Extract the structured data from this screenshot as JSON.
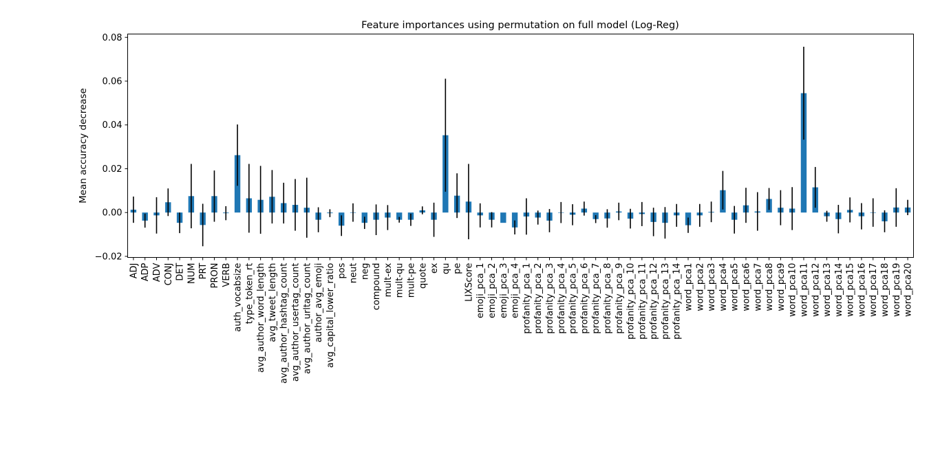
{
  "chart_data": {
    "type": "bar",
    "title": "Feature importances using permutation on full model (Log-Reg)",
    "xlabel": "",
    "ylabel": "Mean accuracy decrease",
    "ylim": [
      -0.0205,
      0.0815
    ],
    "yticks": [
      -0.02,
      0.0,
      0.02,
      0.04,
      0.06,
      0.08
    ],
    "ytick_labels": [
      "−0.02",
      "0.00",
      "0.02",
      "0.04",
      "0.06",
      "0.08"
    ],
    "grid": false,
    "legend": "none",
    "bar_color": "#1f77b4",
    "error_color": "#000000",
    "categories": [
      "ADJ",
      "ADP",
      "ADV",
      "CONJ",
      "DET",
      "NUM",
      "PRT",
      "PRON",
      "VERB",
      "auth_vocabsize",
      "type_token_rt",
      "avg_author_word_length",
      "avg_tweet_length",
      "avg_author_hashtag_count",
      "avg_author_usertag_count",
      "avg_author_urltag_count",
      "author_avg_emoji",
      "avg_capital_lower_ratio",
      "pos",
      "neut",
      "neg",
      "compound",
      "mult-ex",
      "mult-qu",
      "mult-pe",
      "quote",
      "ex",
      "qu",
      "pe",
      "LIXScore",
      "emoji_pca_1",
      "emoji_pca_2",
      "emoji_pca_3",
      "emoji_pca_4",
      "profanity_pca_1",
      "profanity_pca_2",
      "profanity_pca_3",
      "profanity_pca_4",
      "profanity_pca_5",
      "profanity_pca_6",
      "profanity_pca_7",
      "profanity_pca_8",
      "profanity_pca_9",
      "profanity_pca_10",
      "profanity_pca_11",
      "profanity_pca_12",
      "profanity_pca_13",
      "profanity_pca_14",
      "word_pca1",
      "word_pca2",
      "word_pca3",
      "word_pca4",
      "word_pca5",
      "word_pca6",
      "word_pca7",
      "word_pca8",
      "word_pca9",
      "word_pca10",
      "word_pca11",
      "word_pca12",
      "word_pca13",
      "word_pca14",
      "word_pca15",
      "word_pca16",
      "word_pca17",
      "word_pca18",
      "word_pca19",
      "word_pca20"
    ],
    "values": [
      0.0013,
      -0.0037,
      -0.0013,
      0.0047,
      -0.0047,
      0.0075,
      -0.0057,
      0.0075,
      -0.0003,
      0.0262,
      0.0065,
      0.0058,
      0.0072,
      0.0043,
      0.0035,
      0.0022,
      -0.0033,
      -0.0003,
      -0.006,
      0.0,
      -0.0047,
      -0.0033,
      -0.0023,
      -0.0033,
      -0.0033,
      0.001,
      -0.0033,
      0.0353,
      0.0077,
      0.005,
      -0.0013,
      -0.0033,
      -0.0047,
      -0.0068,
      -0.0018,
      -0.0023,
      -0.0037,
      0.0,
      -0.001,
      0.0018,
      -0.003,
      -0.0027,
      0.0005,
      -0.0028,
      -0.0007,
      -0.0043,
      -0.0047,
      -0.0013,
      -0.0058,
      -0.0013,
      0.0003,
      0.0102,
      -0.0033,
      0.0033,
      0.0005,
      0.0062,
      0.0022,
      0.0018,
      0.0545,
      0.0115,
      -0.0017,
      -0.003,
      0.0012,
      -0.0017,
      0.0,
      -0.004,
      0.0023,
      0.0023
    ],
    "errors": [
      0.006,
      0.0032,
      0.0083,
      0.0063,
      0.0047,
      0.0147,
      0.0097,
      0.0117,
      0.0032,
      0.014,
      0.0157,
      0.0155,
      0.0122,
      0.0093,
      0.0118,
      0.0137,
      0.0057,
      0.0018,
      0.0047,
      0.0042,
      0.0028,
      0.007,
      0.0057,
      0.0013,
      0.0028,
      0.0018,
      0.0078,
      0.0258,
      0.0102,
      0.0172,
      0.0055,
      0.0035,
      0.0,
      0.0032,
      0.0083,
      0.0032,
      0.0053,
      0.0048,
      0.0048,
      0.0032,
      0.0018,
      0.0042,
      0.004,
      0.0045,
      0.0055,
      0.0065,
      0.0072,
      0.0052,
      0.0035,
      0.0052,
      0.0047,
      0.0088,
      0.0063,
      0.008,
      0.0088,
      0.005,
      0.008,
      0.0098,
      0.0212,
      0.0093,
      0.0025,
      0.0065,
      0.0057,
      0.006,
      0.0065,
      0.005,
      0.0088,
      0.0035
    ]
  }
}
